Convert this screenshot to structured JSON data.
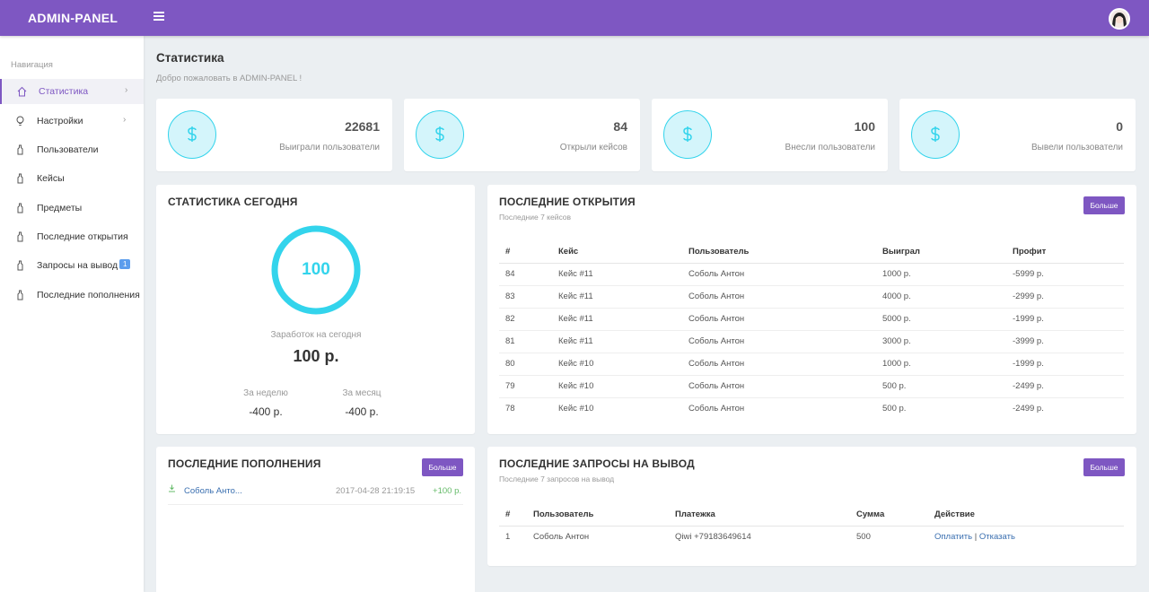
{
  "app": {
    "brand": "ADMIN-PANEL"
  },
  "sidebar": {
    "caption": "Навигация",
    "items": [
      {
        "label": "Статистика",
        "icon": "home-icon",
        "chevron": "›"
      },
      {
        "label": "Настройки",
        "icon": "lightbulb-icon",
        "chevron": "›"
      },
      {
        "label": "Пользователи",
        "icon": "bottle-icon"
      },
      {
        "label": "Кейсы",
        "icon": "bottle-icon"
      },
      {
        "label": "Предметы",
        "icon": "bottle-icon"
      },
      {
        "label": "Последние открытия",
        "icon": "bottle-icon"
      },
      {
        "label": "Запросы на вывод",
        "icon": "bottle-icon",
        "badge": "1"
      },
      {
        "label": "Последние пополнения",
        "icon": "bottle-icon"
      }
    ]
  },
  "header": {
    "title": "Статистика",
    "subtitle": "Добро пожаловать в ADMIN-PANEL !"
  },
  "stats": [
    {
      "value": "22681",
      "label": "Выиграли пользователи",
      "icon": "dollar-icon"
    },
    {
      "value": "84",
      "label": "Открыли кейсов",
      "icon": "dollar-icon"
    },
    {
      "value": "100",
      "label": "Внесли пользователи",
      "icon": "dollar-icon"
    },
    {
      "value": "0",
      "label": "Вывели пользователи",
      "icon": "dollar-icon"
    }
  ],
  "today": {
    "title": "СТАТИСТИКА СЕГОДНЯ",
    "ring_value": "100",
    "earn_label": "Заработок на сегодня",
    "earn_value": "100 р.",
    "week_label": "За неделю",
    "week_value": "-400 р.",
    "month_label": "За месяц",
    "month_value": "-400 р."
  },
  "openings": {
    "title": "ПОСЛЕДНИЕ ОТКРЫТИЯ",
    "subtitle": "Последние 7 кейсов",
    "more_label": "Больше",
    "columns": [
      "#",
      "Кейс",
      "Пользователь",
      "Выиграл",
      "Профит"
    ],
    "rows": [
      [
        "84",
        "Кейс #11",
        "Соболь Антон",
        "1000 р.",
        "-5999 р."
      ],
      [
        "83",
        "Кейс #11",
        "Соболь Антон",
        "4000 р.",
        "-2999 р."
      ],
      [
        "82",
        "Кейс #11",
        "Соболь Антон",
        "5000 р.",
        "-1999 р."
      ],
      [
        "81",
        "Кейс #11",
        "Соболь Антон",
        "3000 р.",
        "-3999 р."
      ],
      [
        "80",
        "Кейс #10",
        "Соболь Антон",
        "1000 р.",
        "-1999 р."
      ],
      [
        "79",
        "Кейс #10",
        "Соболь Антон",
        "500 р.",
        "-2499 р."
      ],
      [
        "78",
        "Кейс #10",
        "Соболь Антон",
        "500 р.",
        "-2499 р."
      ]
    ]
  },
  "deposits": {
    "title": "ПОСЛЕДНИЕ ПОПОЛНЕНИЯ",
    "more_label": "Больше",
    "items": [
      {
        "user": "Соболь Анто...",
        "date": "2017-04-28 21:19:15",
        "amount": "+100 р.",
        "icon": "download-icon"
      }
    ]
  },
  "withdrawals": {
    "title": "ПОСЛЕДНИЕ ЗАПРОСЫ НА ВЫВОД",
    "subtitle": "Последние 7 запросов на вывод",
    "more_label": "Больше",
    "columns": [
      "#",
      "Пользователь",
      "Платежка",
      "Сумма",
      "Действие"
    ],
    "rows": [
      {
        "id": "1",
        "user": "Соболь Антон",
        "payment": "Qiwi +79183649614",
        "sum": "500",
        "pay_label": "Оплатить",
        "sep": " | ",
        "refuse_label": "Отказать"
      }
    ]
  },
  "colors": {
    "accent": "#7e57c2",
    "cyan": "#33d4ec",
    "link": "#3a6fb0",
    "positive": "#66bb6a",
    "badge": "#5c9ded"
  }
}
